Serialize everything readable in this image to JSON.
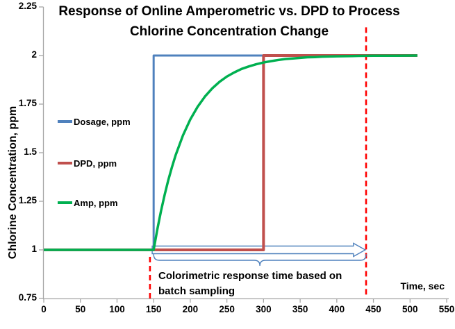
{
  "title": {
    "line1": "Response of Online Amperometric vs. DPD to Process",
    "line2": "Chlorine Concentration Change"
  },
  "axes": {
    "y_label": "Chlorine Concentration, ppm",
    "x_label": "Time, sec"
  },
  "annotation": {
    "line1": "Colorimetric response time based on",
    "line2": "batch sampling"
  },
  "colors": {
    "dosage": "#4F81BD",
    "dpd": "#C0504D",
    "amp": "#00B050",
    "dashed_reference": "#FF0000",
    "axis": "#A6A6A6",
    "text": "#000000"
  },
  "chart_data": {
    "type": "line",
    "title": "Response of Online Amperometric vs. DPD to Process Chlorine Concentration Change",
    "xlabel": "Time, sec",
    "ylabel": "Chlorine Concentration, ppm",
    "xlim": [
      0,
      550
    ],
    "ylim": [
      0.75,
      2.25
    ],
    "x_ticks": [
      "0",
      "50",
      "100",
      "150",
      "200",
      "250",
      "300",
      "350",
      "400",
      "450",
      "500",
      "550"
    ],
    "y_ticks": [
      "0.75",
      "1",
      "1.25",
      "1.5",
      "1.75",
      "2",
      "2.25"
    ],
    "grid": false,
    "legend_position": "middle-left-inside",
    "series": [
      {
        "name": "Dosage, ppm",
        "color": "#4F81BD",
        "stroke_width": 3,
        "points": [
          [
            0,
            1
          ],
          [
            150,
            1
          ],
          [
            150,
            2
          ],
          [
            510,
            2
          ]
        ]
      },
      {
        "name": "DPD, ppm",
        "color": "#C0504D",
        "stroke_width": 4,
        "points": [
          [
            0,
            1
          ],
          [
            300,
            1
          ],
          [
            300,
            2
          ],
          [
            510,
            2
          ]
        ]
      },
      {
        "name": "Amp, ppm",
        "color": "#00B050",
        "stroke_width": 3.5,
        "points": [
          [
            0,
            1
          ],
          [
            150,
            1
          ],
          [
            155,
            1.105
          ],
          [
            160,
            1.199
          ],
          [
            165,
            1.283
          ],
          [
            170,
            1.359
          ],
          [
            175,
            1.426
          ],
          [
            180,
            1.487
          ],
          [
            190,
            1.589
          ],
          [
            200,
            1.671
          ],
          [
            210,
            1.736
          ],
          [
            220,
            1.789
          ],
          [
            230,
            1.831
          ],
          [
            240,
            1.865
          ],
          [
            250,
            1.892
          ],
          [
            260,
            1.913
          ],
          [
            270,
            1.931
          ],
          [
            280,
            1.944
          ],
          [
            290,
            1.955
          ],
          [
            300,
            1.964
          ],
          [
            310,
            1.971
          ],
          [
            320,
            1.977
          ],
          [
            330,
            1.982
          ],
          [
            340,
            1.985
          ],
          [
            350,
            1.988
          ],
          [
            360,
            1.991
          ],
          [
            370,
            1.992
          ],
          [
            380,
            1.994
          ],
          [
            390,
            1.995
          ],
          [
            400,
            1.996
          ],
          [
            415,
            1.997
          ],
          [
            430,
            1.998
          ],
          [
            450,
            1.999
          ],
          [
            480,
            1.999
          ],
          [
            510,
            2
          ]
        ]
      }
    ],
    "reference_lines": [
      {
        "t": 145,
        "ppm_from": 0.75,
        "ppm_to": 0.965,
        "color": "#FF0000",
        "style": "dashed"
      },
      {
        "t": 440,
        "ppm_from": 0.77,
        "ppm_to": 2.155,
        "color": "#FF0000",
        "style": "dashed"
      }
    ],
    "annotations": {
      "arrow": {
        "from_t": 148,
        "to_t": 437,
        "at_ppm": 1.0,
        "color": "#4F81BD"
      },
      "brace": {
        "from_t": 150,
        "to_t": 440,
        "color": "#4F81BD"
      },
      "text": "Colorimetric response time based on batch sampling"
    }
  }
}
